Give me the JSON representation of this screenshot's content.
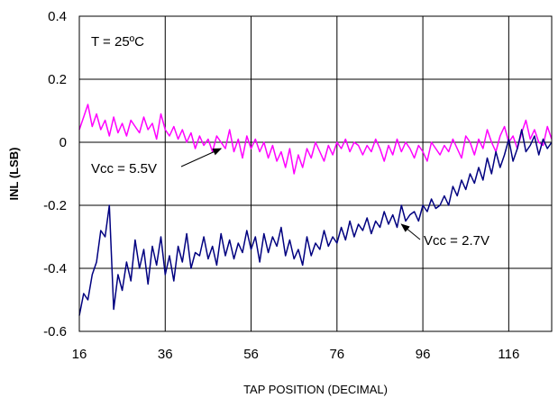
{
  "chart_data": {
    "type": "line",
    "title": "",
    "xlabel": "TAP POSITION (DECIMAL)",
    "ylabel": "INL (LSB)",
    "xlim": [
      16,
      126
    ],
    "ylim": [
      -0.6,
      0.4
    ],
    "x_ticks": [
      "16",
      "36",
      "56",
      "76",
      "96",
      "116"
    ],
    "y_ticks": [
      "0.4",
      "0.2",
      "0",
      "-0.2",
      "-0.4",
      "-0.6"
    ],
    "grid": true,
    "series": [
      {
        "color": "#ff00ff",
        "x": [
          16,
          17,
          18,
          19,
          20,
          21,
          22,
          23,
          24,
          25,
          26,
          27,
          28,
          29,
          30,
          31,
          32,
          33,
          34,
          35,
          36,
          37,
          38,
          39,
          40,
          41,
          42,
          43,
          44,
          45,
          46,
          47,
          48,
          49,
          50,
          51,
          52,
          53,
          54,
          55,
          56,
          57,
          58,
          59,
          60,
          61,
          62,
          63,
          64,
          65,
          66,
          67,
          68,
          69,
          70,
          71,
          72,
          73,
          74,
          75,
          76,
          77,
          78,
          79,
          80,
          81,
          82,
          83,
          84,
          85,
          86,
          87,
          88,
          89,
          90,
          91,
          92,
          93,
          94,
          95,
          96,
          97,
          98,
          99,
          100,
          101,
          102,
          103,
          104,
          105,
          106,
          107,
          108,
          109,
          110,
          111,
          112,
          113,
          114,
          115,
          116,
          117,
          118,
          119,
          120,
          121,
          122,
          123,
          124,
          125,
          126
        ],
        "values": [
          0.04,
          0.08,
          0.12,
          0.05,
          0.09,
          0.04,
          0.07,
          0.02,
          0.08,
          0.03,
          0.06,
          0.02,
          0.07,
          0.05,
          0.03,
          0.08,
          0.04,
          0.06,
          0.01,
          0.09,
          0.04,
          0.02,
          0.05,
          0.01,
          0.04,
          0.0,
          0.03,
          -0.02,
          0.02,
          -0.01,
          0.01,
          -0.03,
          0.02,
          0.0,
          -0.02,
          0.04,
          -0.03,
          0.01,
          -0.05,
          0.02,
          -0.02,
          0.01,
          -0.03,
          0.0,
          -0.05,
          -0.01,
          -0.06,
          -0.03,
          -0.08,
          -0.02,
          -0.1,
          -0.04,
          -0.08,
          -0.02,
          -0.05,
          0.0,
          -0.03,
          -0.06,
          -0.01,
          -0.04,
          0.0,
          -0.02,
          0.01,
          -0.03,
          0.0,
          -0.01,
          -0.04,
          -0.01,
          -0.03,
          0.01,
          -0.02,
          -0.06,
          -0.01,
          -0.04,
          0.01,
          -0.03,
          0.0,
          -0.02,
          -0.05,
          -0.01,
          -0.03,
          -0.06,
          0.0,
          -0.02,
          -0.04,
          -0.01,
          -0.03,
          0.01,
          -0.02,
          -0.05,
          0.02,
          0.0,
          -0.04,
          0.01,
          -0.02,
          0.04,
          0.0,
          -0.03,
          0.02,
          0.05,
          0.0,
          0.02,
          -0.02,
          0.03,
          0.07,
          0.01,
          0.04,
          0.0,
          -0.01,
          0.05,
          0.01
        ]
      },
      {
        "color": "#000080",
        "x": [
          16,
          17,
          18,
          19,
          20,
          21,
          22,
          23,
          24,
          25,
          26,
          27,
          28,
          29,
          30,
          31,
          32,
          33,
          34,
          35,
          36,
          37,
          38,
          39,
          40,
          41,
          42,
          43,
          44,
          45,
          46,
          47,
          48,
          49,
          50,
          51,
          52,
          53,
          54,
          55,
          56,
          57,
          58,
          59,
          60,
          61,
          62,
          63,
          64,
          65,
          66,
          67,
          68,
          69,
          70,
          71,
          72,
          73,
          74,
          75,
          76,
          77,
          78,
          79,
          80,
          81,
          82,
          83,
          84,
          85,
          86,
          87,
          88,
          89,
          90,
          91,
          92,
          93,
          94,
          95,
          96,
          97,
          98,
          99,
          100,
          101,
          102,
          103,
          104,
          105,
          106,
          107,
          108,
          109,
          110,
          111,
          112,
          113,
          114,
          115,
          116,
          117,
          118,
          119,
          120,
          121,
          122,
          123,
          124,
          125,
          126
        ],
        "values": [
          -0.55,
          -0.48,
          -0.5,
          -0.42,
          -0.38,
          -0.28,
          -0.3,
          -0.2,
          -0.53,
          -0.42,
          -0.47,
          -0.38,
          -0.44,
          -0.31,
          -0.4,
          -0.34,
          -0.45,
          -0.33,
          -0.39,
          -0.3,
          -0.42,
          -0.36,
          -0.44,
          -0.33,
          -0.38,
          -0.29,
          -0.4,
          -0.35,
          -0.36,
          -0.3,
          -0.37,
          -0.33,
          -0.39,
          -0.29,
          -0.36,
          -0.31,
          -0.37,
          -0.32,
          -0.35,
          -0.28,
          -0.34,
          -0.3,
          -0.38,
          -0.29,
          -0.35,
          -0.3,
          -0.33,
          -0.27,
          -0.36,
          -0.31,
          -0.37,
          -0.34,
          -0.39,
          -0.3,
          -0.36,
          -0.32,
          -0.34,
          -0.28,
          -0.33,
          -0.3,
          -0.32,
          -0.27,
          -0.31,
          -0.25,
          -0.3,
          -0.26,
          -0.28,
          -0.24,
          -0.29,
          -0.25,
          -0.27,
          -0.22,
          -0.26,
          -0.23,
          -0.27,
          -0.2,
          -0.25,
          -0.23,
          -0.22,
          -0.25,
          -0.2,
          -0.22,
          -0.18,
          -0.21,
          -0.2,
          -0.17,
          -0.2,
          -0.14,
          -0.17,
          -0.12,
          -0.15,
          -0.1,
          -0.13,
          -0.08,
          -0.12,
          -0.05,
          -0.1,
          -0.03,
          -0.08,
          -0.04,
          0.01,
          -0.06,
          -0.02,
          0.04,
          -0.03,
          -0.01,
          0.02,
          -0.04,
          0.01,
          -0.02,
          0.0
        ]
      }
    ],
    "annotations": [
      {
        "text": "T = 25ºC"
      },
      {
        "text": "Vcc = 5.5V",
        "arrow_to": [
          49,
          -0.02
        ]
      },
      {
        "text": "Vcc = 2.7V",
        "arrow_to": [
          91,
          -0.26
        ]
      }
    ]
  }
}
